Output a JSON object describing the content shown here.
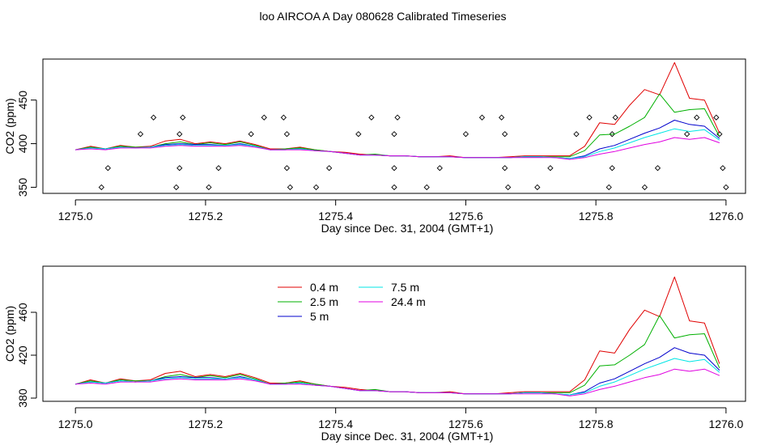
{
  "title": "loo AIRCOA A  Day 080628  Calibrated Timeseries",
  "colors": {
    "0.4 m": "#e00000",
    "2.5 m": "#00b000",
    "5 m": "#0000cc",
    "7.5 m": "#00e5e5",
    "24.4 m": "#e000e0"
  },
  "chart_data": [
    {
      "type": "line",
      "xlabel": "Day since Dec. 31, 2004 (GMT+1)",
      "ylabel": "CO2 (ppm)",
      "xlim": [
        1274.95,
        1276.03
      ],
      "ylim": [
        343,
        497
      ],
      "xticks": [
        1275.0,
        1275.2,
        1275.4,
        1275.6,
        1275.8,
        1276.0
      ],
      "xtick_labels": [
        "1275.0",
        "1275.2",
        "1275.4",
        "1275.6",
        "1275.8",
        "1276.0"
      ],
      "yticks": [
        350,
        400,
        450
      ],
      "ytick_labels": [
        "350",
        "400",
        "450"
      ],
      "legend": false,
      "points": [
        [
          1275.04,
          350
        ],
        [
          1275.05,
          372
        ],
        [
          1275.1,
          411
        ],
        [
          1275.12,
          430
        ],
        [
          1275.155,
          350
        ],
        [
          1275.16,
          372
        ],
        [
          1275.16,
          411
        ],
        [
          1275.165,
          430
        ],
        [
          1275.205,
          350
        ],
        [
          1275.22,
          372
        ],
        [
          1275.27,
          411
        ],
        [
          1275.29,
          430
        ],
        [
          1275.32,
          430
        ],
        [
          1275.325,
          411
        ],
        [
          1275.325,
          372
        ],
        [
          1275.33,
          350
        ],
        [
          1275.37,
          350
        ],
        [
          1275.39,
          372
        ],
        [
          1275.435,
          411
        ],
        [
          1275.455,
          430
        ],
        [
          1275.49,
          350
        ],
        [
          1275.49,
          372
        ],
        [
          1275.49,
          411
        ],
        [
          1275.495,
          430
        ],
        [
          1275.54,
          350
        ],
        [
          1275.56,
          372
        ],
        [
          1275.6,
          411
        ],
        [
          1275.625,
          430
        ],
        [
          1275.655,
          430
        ],
        [
          1275.66,
          411
        ],
        [
          1275.66,
          372
        ],
        [
          1275.665,
          350
        ],
        [
          1275.71,
          350
        ],
        [
          1275.73,
          372
        ],
        [
          1275.77,
          411
        ],
        [
          1275.79,
          430
        ],
        [
          1275.82,
          350
        ],
        [
          1275.825,
          372
        ],
        [
          1275.825,
          411
        ],
        [
          1275.83,
          430
        ],
        [
          1275.875,
          350
        ],
        [
          1275.895,
          372
        ],
        [
          1275.94,
          411
        ],
        [
          1275.955,
          430
        ],
        [
          1275.985,
          430
        ],
        [
          1275.99,
          411
        ],
        [
          1275.995,
          372
        ],
        [
          1276.0,
          350
        ]
      ],
      "series": [
        {
          "name": "0.4 m",
          "values": [
            393,
            397,
            394,
            398,
            396,
            397,
            403,
            405,
            400,
            402,
            400,
            403,
            399,
            394,
            394,
            396,
            393,
            391,
            390,
            388,
            387,
            386,
            386,
            385,
            385,
            386,
            384,
            384,
            384,
            385,
            386,
            386,
            386,
            386,
            397,
            424,
            422,
            444,
            462,
            456,
            493,
            452,
            450,
            412
          ]
        },
        {
          "name": "2.5 m",
          "values": [
            393,
            396,
            394,
            397,
            396,
            396,
            400,
            402,
            399,
            401,
            399,
            402,
            398,
            393,
            394,
            395,
            393,
            391,
            389,
            387,
            388,
            386,
            386,
            385,
            385,
            385,
            384,
            384,
            384,
            384,
            385,
            385,
            385,
            385,
            392,
            410,
            411,
            420,
            430,
            457,
            436,
            439,
            440,
            408
          ]
        },
        {
          "name": "5 m",
          "values": [
            393,
            395,
            394,
            396,
            395,
            396,
            399,
            400,
            399,
            399,
            398,
            400,
            397,
            393,
            393,
            394,
            392,
            391,
            389,
            387,
            387,
            386,
            386,
            385,
            385,
            385,
            384,
            384,
            384,
            384,
            385,
            385,
            384,
            383,
            386,
            394,
            398,
            405,
            412,
            418,
            427,
            422,
            420,
            406
          ]
        },
        {
          "name": "7.5 m",
          "values": [
            393,
            395,
            394,
            396,
            395,
            396,
            398,
            399,
            398,
            398,
            398,
            399,
            397,
            393,
            393,
            394,
            392,
            391,
            389,
            387,
            387,
            386,
            386,
            385,
            385,
            385,
            384,
            384,
            384,
            384,
            385,
            385,
            384,
            383,
            385,
            391,
            395,
            401,
            407,
            412,
            417,
            414,
            416,
            404
          ]
        },
        {
          "name": "24.4 m",
          "values": [
            393,
            394,
            393,
            395,
            395,
            395,
            397,
            398,
            397,
            397,
            397,
            398,
            396,
            393,
            393,
            393,
            392,
            391,
            389,
            387,
            387,
            386,
            386,
            385,
            385,
            385,
            384,
            384,
            384,
            384,
            384,
            384,
            384,
            382,
            384,
            388,
            391,
            395,
            399,
            402,
            407,
            405,
            407,
            401
          ]
        }
      ]
    },
    {
      "type": "line",
      "xlabel": "Day since Dec. 31, 2004 (GMT+1)",
      "ylabel": "CO2 (ppm)",
      "xlim": [
        1274.95,
        1276.03
      ],
      "ylim": [
        377,
        503
      ],
      "xticks": [
        1275.0,
        1275.2,
        1275.4,
        1275.6,
        1275.8,
        1276.0
      ],
      "xtick_labels": [
        "1275.0",
        "1275.2",
        "1275.4",
        "1275.6",
        "1275.8",
        "1276.0"
      ],
      "yticks": [
        380,
        420,
        460
      ],
      "ytick_labels": [
        "380",
        "420",
        "460"
      ],
      "legend": true,
      "legend_position": "top-left",
      "series": [
        {
          "name": "0.4 m",
          "values": [
            393,
            397,
            394,
            398,
            396,
            397,
            403,
            405,
            400,
            402,
            400,
            403,
            399,
            394,
            394,
            396,
            393,
            391,
            390,
            388,
            387,
            386,
            386,
            385,
            385,
            386,
            384,
            384,
            384,
            385,
            386,
            386,
            386,
            386,
            397,
            424,
            422,
            444,
            462,
            456,
            493,
            452,
            450,
            412
          ]
        },
        {
          "name": "2.5 m",
          "values": [
            393,
            396,
            394,
            397,
            396,
            396,
            400,
            402,
            399,
            401,
            399,
            402,
            398,
            393,
            394,
            395,
            393,
            391,
            389,
            387,
            388,
            386,
            386,
            385,
            385,
            385,
            384,
            384,
            384,
            384,
            385,
            385,
            385,
            385,
            392,
            410,
            411,
            420,
            430,
            457,
            436,
            439,
            440,
            408
          ]
        },
        {
          "name": "5 m",
          "values": [
            393,
            395,
            394,
            396,
            395,
            396,
            399,
            400,
            399,
            399,
            398,
            400,
            397,
            393,
            393,
            394,
            392,
            391,
            389,
            387,
            387,
            386,
            386,
            385,
            385,
            385,
            384,
            384,
            384,
            384,
            385,
            385,
            384,
            383,
            386,
            394,
            398,
            405,
            412,
            418,
            427,
            422,
            420,
            406
          ]
        },
        {
          "name": "7.5 m",
          "values": [
            393,
            395,
            394,
            396,
            395,
            396,
            398,
            399,
            398,
            398,
            398,
            399,
            397,
            393,
            393,
            394,
            392,
            391,
            389,
            387,
            387,
            386,
            386,
            385,
            385,
            385,
            384,
            384,
            384,
            384,
            385,
            385,
            384,
            383,
            385,
            391,
            395,
            401,
            407,
            412,
            417,
            414,
            416,
            404
          ]
        },
        {
          "name": "24.4 m",
          "values": [
            393,
            394,
            393,
            395,
            395,
            395,
            397,
            398,
            397,
            397,
            397,
            398,
            396,
            393,
            393,
            393,
            392,
            391,
            389,
            387,
            387,
            386,
            386,
            385,
            385,
            385,
            384,
            384,
            384,
            384,
            384,
            384,
            384,
            382,
            384,
            388,
            391,
            395,
            399,
            402,
            407,
            405,
            407,
            401
          ]
        }
      ]
    }
  ]
}
